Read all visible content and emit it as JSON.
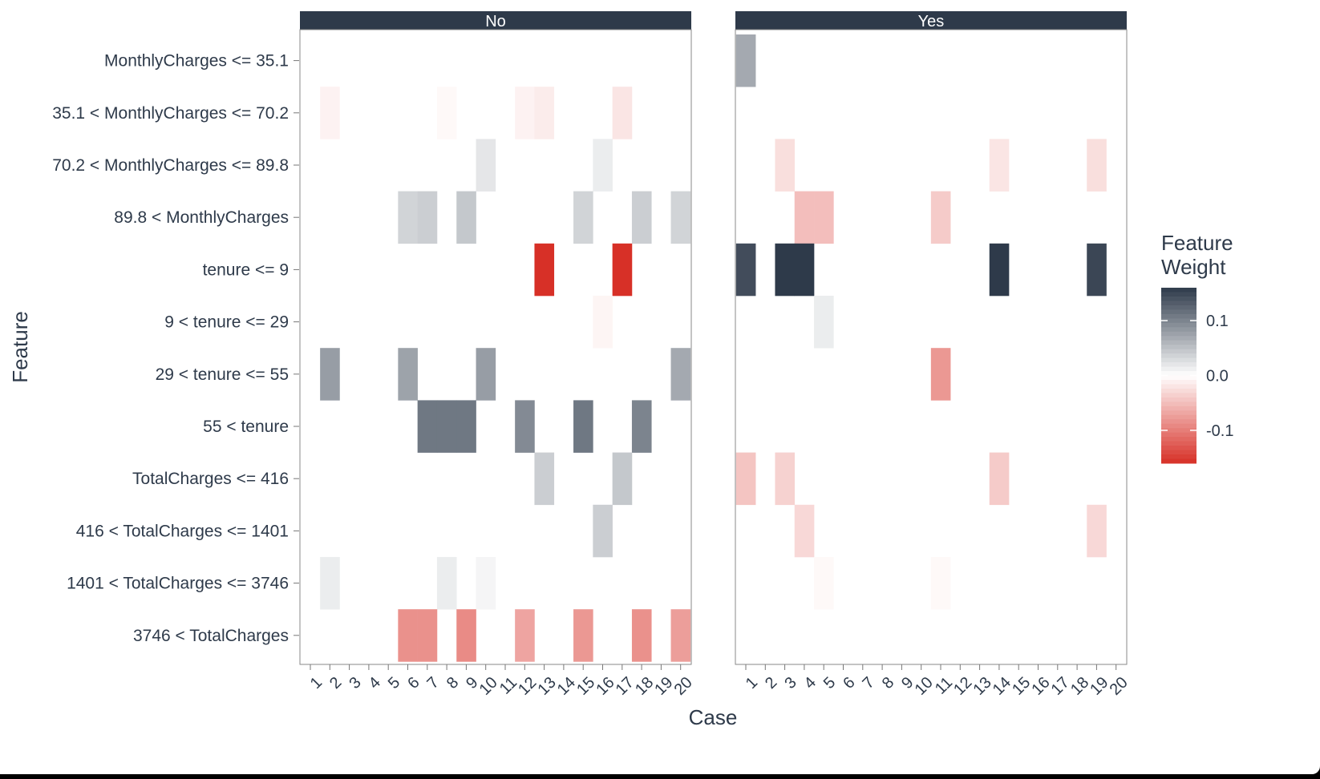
{
  "chart_data": {
    "type": "heatmap",
    "xlabel": "Case",
    "ylabel": "Feature",
    "legend_title": [
      "Feature",
      "Weight"
    ],
    "legend_placement": "right",
    "legend_ticks": [
      0.1,
      0.0,
      -0.1
    ],
    "legend_tick_labels": [
      "0.1",
      "0.0",
      "-0.1"
    ],
    "color_range": [
      -0.16,
      0.16
    ],
    "colors": {
      "negative": "#d73027",
      "zero": "#ffffff",
      "positive": "#2e3a4a",
      "strip": "#2e3a4a",
      "text": "#2e3a4a"
    },
    "x_categories": [
      "1",
      "2",
      "3",
      "4",
      "5",
      "6",
      "7",
      "8",
      "9",
      "10",
      "11",
      "12",
      "13",
      "14",
      "15",
      "16",
      "17",
      "18",
      "19",
      "20"
    ],
    "features": [
      "MonthlyCharges <= 35.1",
      "35.1 < MonthlyCharges <= 70.2",
      "70.2 < MonthlyCharges <= 89.8",
      "89.8 < MonthlyCharges",
      "tenure <= 9",
      "9 < tenure <= 29",
      "29 < tenure <= 55",
      "55 < tenure",
      "TotalCharges <= 416",
      "416 < TotalCharges <= 1401",
      "1401 < TotalCharges <= 3746",
      "3746 < TotalCharges"
    ],
    "panels": [
      {
        "label": "No",
        "cells": [
          {
            "feature": 1,
            "case": 2,
            "weight": -0.01
          },
          {
            "feature": 1,
            "case": 8,
            "weight": -0.005
          },
          {
            "feature": 1,
            "case": 12,
            "weight": -0.01
          },
          {
            "feature": 1,
            "case": 13,
            "weight": -0.015
          },
          {
            "feature": 1,
            "case": 17,
            "weight": -0.02
          },
          {
            "feature": 2,
            "case": 10,
            "weight": 0.02
          },
          {
            "feature": 2,
            "case": 16,
            "weight": 0.015
          },
          {
            "feature": 3,
            "case": 6,
            "weight": 0.035
          },
          {
            "feature": 3,
            "case": 7,
            "weight": 0.04
          },
          {
            "feature": 3,
            "case": 9,
            "weight": 0.045
          },
          {
            "feature": 3,
            "case": 15,
            "weight": 0.035
          },
          {
            "feature": 3,
            "case": 18,
            "weight": 0.04
          },
          {
            "feature": 3,
            "case": 20,
            "weight": 0.035
          },
          {
            "feature": 4,
            "case": 13,
            "weight": -0.16
          },
          {
            "feature": 4,
            "case": 17,
            "weight": -0.16
          },
          {
            "feature": 5,
            "case": 16,
            "weight": -0.008
          },
          {
            "feature": 6,
            "case": 2,
            "weight": 0.08
          },
          {
            "feature": 6,
            "case": 6,
            "weight": 0.075
          },
          {
            "feature": 6,
            "case": 10,
            "weight": 0.08
          },
          {
            "feature": 6,
            "case": 20,
            "weight": 0.07
          },
          {
            "feature": 7,
            "case": 7,
            "weight": 0.11
          },
          {
            "feature": 7,
            "case": 8,
            "weight": 0.11
          },
          {
            "feature": 7,
            "case": 9,
            "weight": 0.11
          },
          {
            "feature": 7,
            "case": 12,
            "weight": 0.095
          },
          {
            "feature": 7,
            "case": 15,
            "weight": 0.11
          },
          {
            "feature": 7,
            "case": 18,
            "weight": 0.1
          },
          {
            "feature": 8,
            "case": 13,
            "weight": 0.04
          },
          {
            "feature": 8,
            "case": 17,
            "weight": 0.045
          },
          {
            "feature": 9,
            "case": 16,
            "weight": 0.04
          },
          {
            "feature": 10,
            "case": 2,
            "weight": 0.015
          },
          {
            "feature": 10,
            "case": 8,
            "weight": 0.015
          },
          {
            "feature": 10,
            "case": 10,
            "weight": 0.008
          },
          {
            "feature": 11,
            "case": 6,
            "weight": -0.085
          },
          {
            "feature": 11,
            "case": 7,
            "weight": -0.085
          },
          {
            "feature": 11,
            "case": 9,
            "weight": -0.09
          },
          {
            "feature": 11,
            "case": 12,
            "weight": -0.07
          },
          {
            "feature": 11,
            "case": 15,
            "weight": -0.08
          },
          {
            "feature": 11,
            "case": 18,
            "weight": -0.085
          },
          {
            "feature": 11,
            "case": 20,
            "weight": -0.075
          }
        ]
      },
      {
        "label": "Yes",
        "cells": [
          {
            "feature": 0,
            "case": 1,
            "weight": 0.07
          },
          {
            "feature": 2,
            "case": 3,
            "weight": -0.025
          },
          {
            "feature": 2,
            "case": 14,
            "weight": -0.02
          },
          {
            "feature": 2,
            "case": 19,
            "weight": -0.025
          },
          {
            "feature": 3,
            "case": 4,
            "weight": -0.05
          },
          {
            "feature": 3,
            "case": 5,
            "weight": -0.05
          },
          {
            "feature": 3,
            "case": 11,
            "weight": -0.04
          },
          {
            "feature": 4,
            "case": 1,
            "weight": 0.145
          },
          {
            "feature": 4,
            "case": 3,
            "weight": 0.16
          },
          {
            "feature": 4,
            "case": 4,
            "weight": 0.16
          },
          {
            "feature": 4,
            "case": 14,
            "weight": 0.16
          },
          {
            "feature": 4,
            "case": 19,
            "weight": 0.15
          },
          {
            "feature": 5,
            "case": 5,
            "weight": 0.015
          },
          {
            "feature": 6,
            "case": 11,
            "weight": -0.08
          },
          {
            "feature": 8,
            "case": 1,
            "weight": -0.045
          },
          {
            "feature": 8,
            "case": 3,
            "weight": -0.035
          },
          {
            "feature": 8,
            "case": 14,
            "weight": -0.04
          },
          {
            "feature": 9,
            "case": 4,
            "weight": -0.03
          },
          {
            "feature": 9,
            "case": 19,
            "weight": -0.03
          },
          {
            "feature": 10,
            "case": 5,
            "weight": -0.005
          },
          {
            "feature": 10,
            "case": 11,
            "weight": -0.005
          }
        ]
      }
    ]
  }
}
